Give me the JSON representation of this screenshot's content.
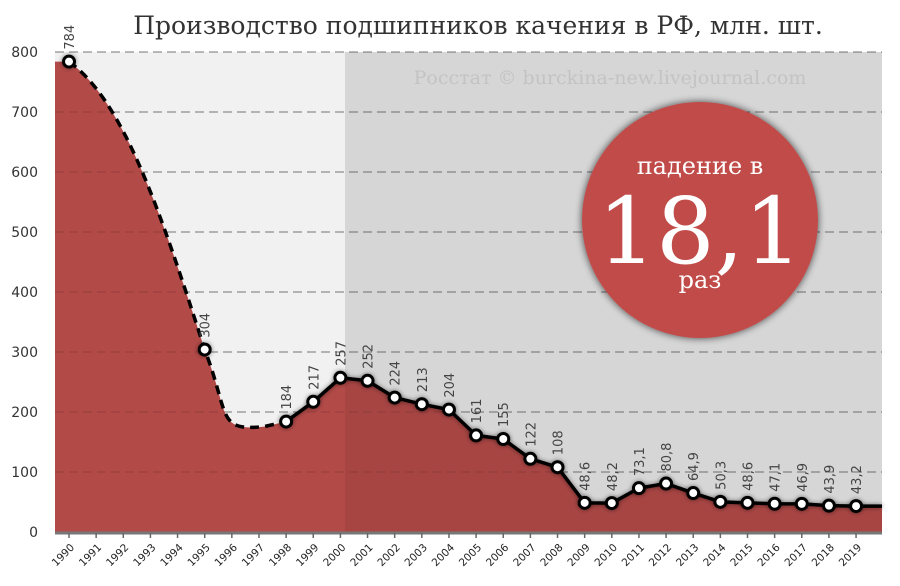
{
  "chart_data": {
    "type": "area",
    "title": "Производство подшипников качения в РФ, млн. шт.",
    "xlabel": "",
    "ylabel": "",
    "ylim": [
      0,
      800
    ],
    "yticks": [
      0,
      100,
      200,
      300,
      400,
      500,
      600,
      700,
      800
    ],
    "grid": true,
    "legend": null,
    "categories": [
      "1990",
      "1991",
      "1992",
      "1993",
      "1994",
      "1995",
      "1996",
      "1997",
      "1998",
      "1999",
      "2000",
      "2001",
      "2002",
      "2003",
      "2004",
      "2005",
      "2006",
      "2007",
      "2008",
      "2009",
      "2010",
      "2011",
      "2012",
      "2013",
      "2014",
      "2015",
      "2016",
      "2017",
      "2018",
      "2019"
    ],
    "series": [
      {
        "name": "Производство подшипников качения, млн. шт.",
        "points": [
          {
            "x": "1990",
            "y": 784,
            "label": "784"
          },
          {
            "x": "1995",
            "y": 304,
            "label": "304"
          },
          {
            "x": "1998",
            "y": 184,
            "label": "184"
          },
          {
            "x": "1999",
            "y": 217,
            "label": "217"
          },
          {
            "x": "2000",
            "y": 257,
            "label": "257"
          },
          {
            "x": "2001",
            "y": 252,
            "label": "252"
          },
          {
            "x": "2002",
            "y": 224,
            "label": "224"
          },
          {
            "x": "2003",
            "y": 213,
            "label": "213"
          },
          {
            "x": "2004",
            "y": 204,
            "label": "204"
          },
          {
            "x": "2005",
            "y": 161,
            "label": "161"
          },
          {
            "x": "2006",
            "y": 155,
            "label": "155"
          },
          {
            "x": "2007",
            "y": 122,
            "label": "122"
          },
          {
            "x": "2008",
            "y": 108,
            "label": "108"
          },
          {
            "x": "2009",
            "y": 48.6,
            "label": "48,6"
          },
          {
            "x": "2010",
            "y": 48.2,
            "label": "48,2"
          },
          {
            "x": "2011",
            "y": 73.1,
            "label": "73,1"
          },
          {
            "x": "2012",
            "y": 80.8,
            "label": "80,8"
          },
          {
            "x": "2013",
            "y": 64.9,
            "label": "64,9"
          },
          {
            "x": "2014",
            "y": 50.3,
            "label": "50,3"
          },
          {
            "x": "2015",
            "y": 48.6,
            "label": "48,6"
          },
          {
            "x": "2016",
            "y": 47.1,
            "label": "47,1"
          },
          {
            "x": "2017",
            "y": 46.9,
            "label": "46,9"
          },
          {
            "x": "2018",
            "y": 43.9,
            "label": "43,9"
          },
          {
            "x": "2019",
            "y": 43.2,
            "label": "43,2"
          }
        ],
        "interpolated_segment": [
          "1990",
          "1998"
        ],
        "interpolated_style": "dashed"
      }
    ],
    "annotations": [
      {
        "type": "watermark",
        "text": "Росстат © burckina-new.livejournal.com"
      },
      {
        "type": "badge",
        "line1": "падение в",
        "value": "18,1",
        "line3": "раз"
      }
    ],
    "shaded_region": {
      "from": "2000",
      "to": "2019"
    }
  },
  "colors": {
    "area_fill": "#b24a48",
    "area_fill_shaded": "#a84442",
    "plot_bg_left": "#f1f1f1",
    "plot_bg_right": "#e4e4e4",
    "badge_fill": "#c04b4a",
    "line": "#000000",
    "grid": "#888888"
  }
}
